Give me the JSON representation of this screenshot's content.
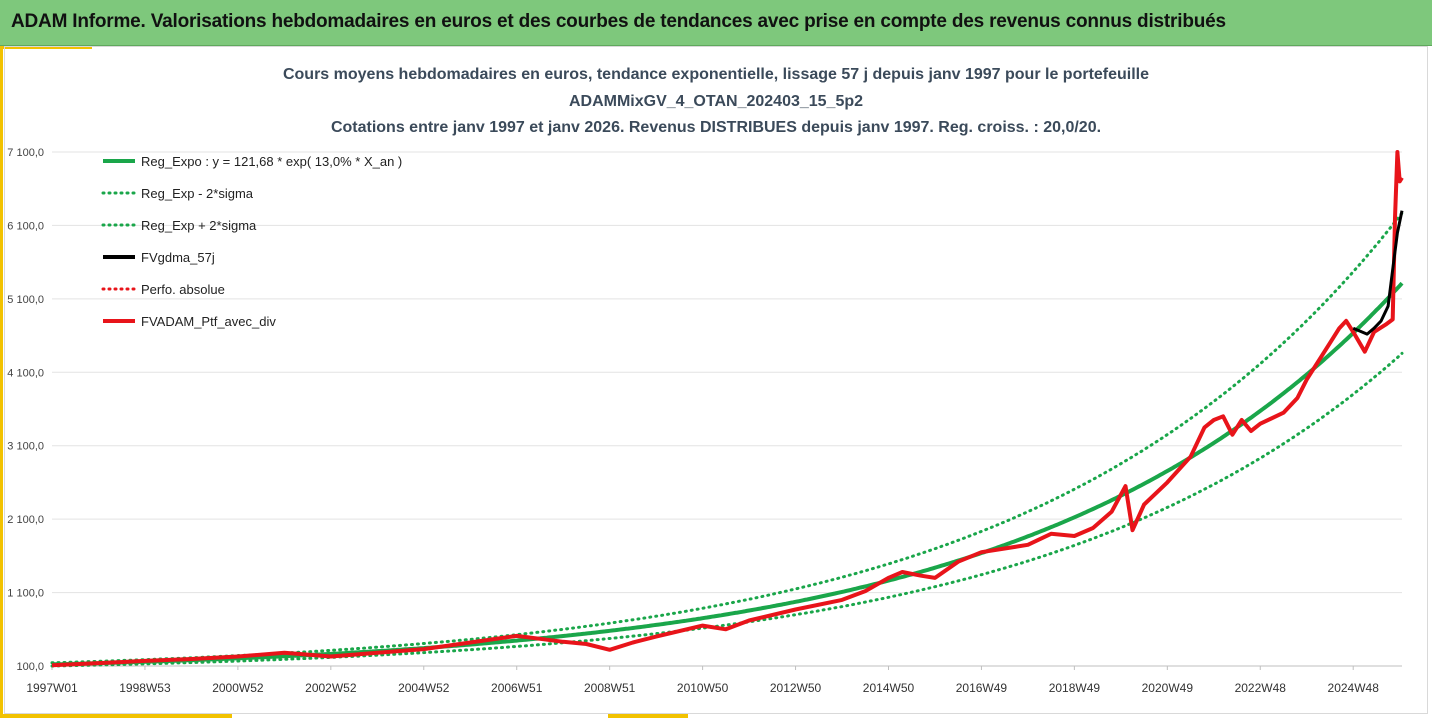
{
  "header": {
    "title": "ADAM Informe. Valorisations hebdomadaires en euros et des courbes de tendances avec prise en compte des revenus connus distribués"
  },
  "colors": {
    "header_bg": "#7ec87c",
    "accent": "#f2c200",
    "trend": "#1aa64a",
    "smooth": "#000000",
    "portfolio": "#e8141a"
  },
  "chart_data": {
    "type": "line",
    "title": "Cours moyens hebdomadaires  en euros, tendance exponentielle, lissage 57 j depuis janv 1997 pour le portefeuille",
    "subtitle": "ADAMMixGV_4_OTAN_202403_15_5p2",
    "subtitle2": "Cotations entre janv 1997 et janv 2026. Revenus DISTRIBUES depuis janv 1997. Reg. croiss. : 20,0/20.",
    "ylim": [
      100,
      7100
    ],
    "yticks": [
      "100,0",
      "1 100,0",
      "2 100,0",
      "3 100,0",
      "4 100,0",
      "5 100,0",
      "6 100,0",
      "7 100,0"
    ],
    "xlim": [
      1997.0,
      2026.05
    ],
    "xticks": [
      {
        "label": "1997W01",
        "t": 1997.0
      },
      {
        "label": "1998W53",
        "t": 1999.0
      },
      {
        "label": "2000W52",
        "t": 2001.0
      },
      {
        "label": "2002W52",
        "t": 2003.0
      },
      {
        "label": "2004W52",
        "t": 2005.0
      },
      {
        "label": "2006W51",
        "t": 2007.0
      },
      {
        "label": "2008W51",
        "t": 2009.0
      },
      {
        "label": "2010W50",
        "t": 2011.0
      },
      {
        "label": "2012W50",
        "t": 2013.0
      },
      {
        "label": "2014W50",
        "t": 2015.0
      },
      {
        "label": "2016W49",
        "t": 2017.0
      },
      {
        "label": "2018W49",
        "t": 2019.0
      },
      {
        "label": "2020W49",
        "t": 2021.0
      },
      {
        "label": "2022W48",
        "t": 2023.0
      },
      {
        "label": "2024W48",
        "t": 2025.0
      }
    ],
    "legend_position": "top-left",
    "grid": "horizontal",
    "regression": {
      "a": 121.68,
      "rate": 0.13,
      "sigma_factor": 0.18
    },
    "series": [
      {
        "name": "Reg_Expo : y = 121,68 * exp( 13,0% *  X_an )",
        "style": "solid",
        "color": "#1aa64a"
      },
      {
        "name": "Reg_Exp - 2*sigma",
        "style": "dotted",
        "color": "#1aa64a"
      },
      {
        "name": "Reg_Exp + 2*sigma",
        "style": "dotted",
        "color": "#1aa64a"
      },
      {
        "name": "FVgdma_57j",
        "style": "solid",
        "color": "#000000",
        "points": [
          [
            2025.0,
            4700
          ],
          [
            2025.3,
            4620
          ],
          [
            2025.45,
            4700
          ],
          [
            2025.6,
            4800
          ],
          [
            2025.75,
            5000
          ],
          [
            2025.85,
            5500
          ],
          [
            2025.95,
            6000
          ],
          [
            2026.05,
            6300
          ]
        ]
      },
      {
        "name": "Perfo. absolue",
        "style": "dotted",
        "color": "#e8141a"
      },
      {
        "name": "FVADAM_Ptf_avec_div",
        "style": "solid",
        "color": "#e8141a",
        "points": [
          [
            1997.0,
            110
          ],
          [
            1998.0,
            140
          ],
          [
            1999.0,
            170
          ],
          [
            2000.0,
            195
          ],
          [
            2001.0,
            230
          ],
          [
            2002.0,
            280
          ],
          [
            2003.0,
            230
          ],
          [
            2004.0,
            280
          ],
          [
            2005.0,
            330
          ],
          [
            2006.0,
            420
          ],
          [
            2007.0,
            510
          ],
          [
            2007.5,
            470
          ],
          [
            2008.0,
            430
          ],
          [
            2008.5,
            400
          ],
          [
            2009.0,
            320
          ],
          [
            2009.5,
            420
          ],
          [
            2010.0,
            500
          ],
          [
            2011.0,
            650
          ],
          [
            2011.5,
            600
          ],
          [
            2012.0,
            720
          ],
          [
            2013.0,
            870
          ],
          [
            2014.0,
            1000
          ],
          [
            2014.5,
            1120
          ],
          [
            2015.0,
            1300
          ],
          [
            2015.3,
            1380
          ],
          [
            2015.7,
            1330
          ],
          [
            2016.0,
            1300
          ],
          [
            2016.5,
            1520
          ],
          [
            2017.0,
            1650
          ],
          [
            2017.5,
            1700
          ],
          [
            2018.0,
            1750
          ],
          [
            2018.5,
            1900
          ],
          [
            2019.0,
            1870
          ],
          [
            2019.4,
            1980
          ],
          [
            2019.8,
            2200
          ],
          [
            2020.1,
            2550
          ],
          [
            2020.25,
            1950
          ],
          [
            2020.5,
            2300
          ],
          [
            2021.0,
            2600
          ],
          [
            2021.5,
            2950
          ],
          [
            2021.8,
            3350
          ],
          [
            2022.0,
            3450
          ],
          [
            2022.2,
            3500
          ],
          [
            2022.4,
            3250
          ],
          [
            2022.6,
            3450
          ],
          [
            2022.8,
            3300
          ],
          [
            2023.0,
            3400
          ],
          [
            2023.5,
            3550
          ],
          [
            2023.8,
            3750
          ],
          [
            2024.0,
            4000
          ],
          [
            2024.3,
            4300
          ],
          [
            2024.5,
            4500
          ],
          [
            2024.7,
            4700
          ],
          [
            2024.85,
            4800
          ],
          [
            2025.0,
            4650
          ],
          [
            2025.25,
            4380
          ],
          [
            2025.45,
            4650
          ],
          [
            2025.7,
            4750
          ],
          [
            2025.85,
            4820
          ],
          [
            2025.9,
            6200
          ],
          [
            2025.95,
            7100
          ],
          [
            2026.0,
            6700
          ],
          [
            2026.05,
            6750
          ]
        ]
      }
    ]
  }
}
